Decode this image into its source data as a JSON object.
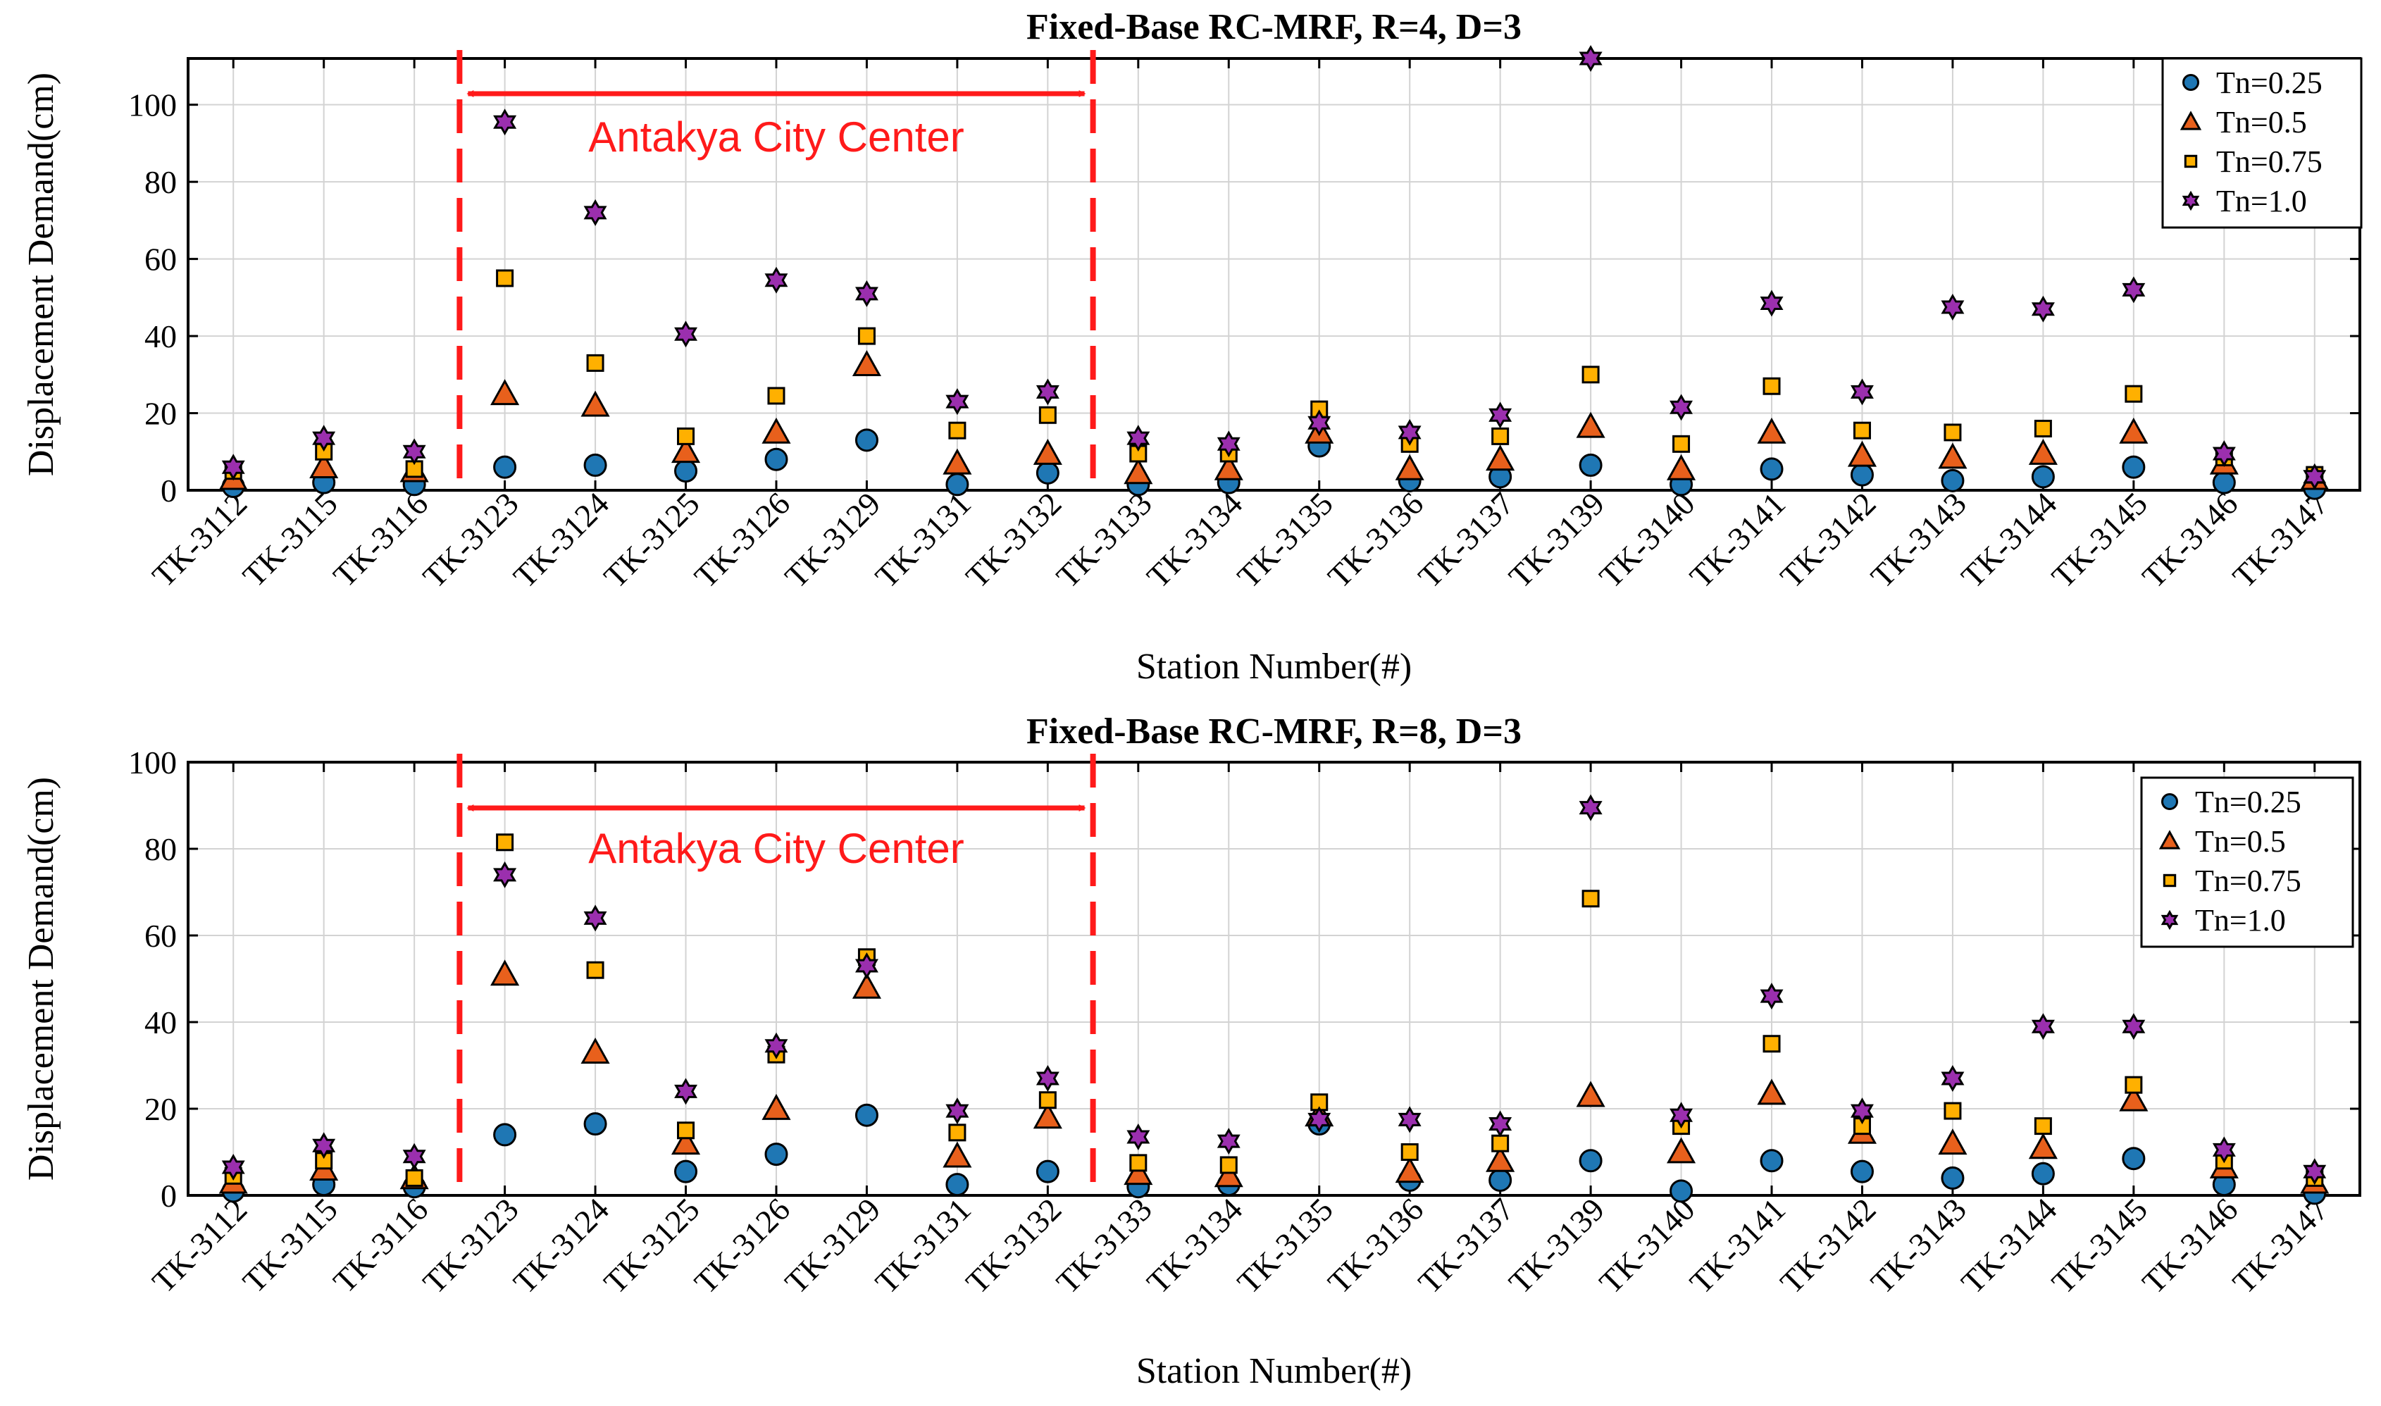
{
  "chart_data": [
    {
      "type": "scatter",
      "title": "Fixed-Base RC-MRF, R=4, D=3",
      "xlabel": "Station Number(#)",
      "ylabel": "Displacement Demand(cm)",
      "ylim": [
        0,
        112
      ],
      "yticks": [
        0,
        20,
        40,
        60,
        80,
        100
      ],
      "grid": true,
      "legend_position": "top-right",
      "categories": [
        "TK-3112",
        "TK-3115",
        "TK-3116",
        "TK-3123",
        "TK-3124",
        "TK-3125",
        "TK-3126",
        "TK-3129",
        "TK-3131",
        "TK-3132",
        "TK-3133",
        "TK-3134",
        "TK-3135",
        "TK-3136",
        "TK-3137",
        "TK-3139",
        "TK-3140",
        "TK-3141",
        "TK-3142",
        "TK-3143",
        "TK-3144",
        "TK-3145",
        "TK-3146",
        "TK-3147"
      ],
      "series": [
        {
          "name": "Tn=0.25",
          "marker": "circle",
          "color": "#1f77b4",
          "values": [
            1,
            2,
            1.5,
            6,
            6.5,
            5,
            8,
            13,
            1.5,
            4.5,
            1.5,
            2,
            11.5,
            2.5,
            3.5,
            6.5,
            1.5,
            5.5,
            4,
            2.5,
            3.5,
            6,
            2,
            0.5
          ]
        },
        {
          "name": "Tn=0.5",
          "marker": "triangle",
          "color": "#e8601c",
          "values": [
            3,
            6,
            5,
            25,
            22,
            10,
            15,
            32.5,
            7,
            9.5,
            4.5,
            5.5,
            15,
            5.5,
            8,
            16.5,
            5.5,
            15,
            9,
            8.5,
            9.5,
            15,
            7,
            3
          ]
        },
        {
          "name": "Tn=0.75",
          "marker": "square",
          "color": "#ffb000",
          "values": [
            5,
            10,
            5.5,
            55,
            33,
            14,
            24.5,
            40,
            15.5,
            19.5,
            9.5,
            9.5,
            21,
            12,
            14,
            30,
            12,
            27,
            15.5,
            15,
            16,
            25,
            8.5,
            4
          ]
        },
        {
          "name": "Tn=1.0",
          "marker": "hexagram",
          "color": "#9b2fae",
          "values": [
            6,
            13.5,
            10,
            95.5,
            72,
            40.5,
            54.5,
            51,
            23,
            25.5,
            13.5,
            12,
            17.5,
            15,
            19.5,
            112,
            21.5,
            48.5,
            25.5,
            47.5,
            47,
            52,
            9.5,
            3.5
          ]
        }
      ],
      "annotation": {
        "text": "Antakya City Center",
        "from": "TK-3116",
        "to": "TK-3132"
      }
    },
    {
      "type": "scatter",
      "title": "Fixed-Base RC-MRF, R=8, D=3",
      "xlabel": "Station Number(#)",
      "ylabel": "Displacement Demand(cm)",
      "ylim": [
        0,
        100
      ],
      "yticks": [
        0,
        20,
        40,
        60,
        80,
        100
      ],
      "grid": true,
      "legend_position": "top-right",
      "categories": [
        "TK-3112",
        "TK-3115",
        "TK-3116",
        "TK-3123",
        "TK-3124",
        "TK-3125",
        "TK-3126",
        "TK-3129",
        "TK-3131",
        "TK-3132",
        "TK-3133",
        "TK-3134",
        "TK-3135",
        "TK-3136",
        "TK-3137",
        "TK-3139",
        "TK-3140",
        "TK-3141",
        "TK-3142",
        "TK-3143",
        "TK-3144",
        "TK-3145",
        "TK-3146",
        "TK-3147"
      ],
      "series": [
        {
          "name": "Tn=0.25",
          "marker": "circle",
          "color": "#1f77b4",
          "values": [
            1,
            2.5,
            2,
            14,
            16.5,
            5.5,
            9.5,
            18.5,
            2.5,
            5.5,
            2,
            2.5,
            16.5,
            3.5,
            3.5,
            8,
            1,
            8,
            5.5,
            4,
            5,
            8.5,
            2.5,
            0.5
          ]
        },
        {
          "name": "Tn=0.5",
          "marker": "triangle",
          "color": "#e8601c",
          "values": [
            3,
            6,
            4,
            51,
            33,
            12,
            20,
            48,
            9,
            18,
            5,
            4.5,
            18.5,
            5.5,
            8,
            23,
            10,
            23.5,
            14.5,
            12,
            11,
            22,
            6.5,
            3
          ]
        },
        {
          "name": "Tn=0.75",
          "marker": "square",
          "color": "#ffb000",
          "values": [
            4.5,
            8,
            4,
            81.5,
            52,
            15,
            32.5,
            55,
            14.5,
            22,
            7.5,
            7,
            21.5,
            10,
            12,
            68.5,
            16,
            35,
            16,
            19.5,
            16,
            25.5,
            8,
            4
          ]
        },
        {
          "name": "Tn=1.0",
          "marker": "hexagram",
          "color": "#9b2fae",
          "values": [
            6.5,
            11.5,
            9,
            74,
            64,
            24,
            34.5,
            53,
            19.5,
            27,
            13.5,
            12.5,
            17.5,
            17.5,
            16.5,
            89.5,
            18.5,
            46,
            19.5,
            27,
            39,
            39,
            10.5,
            5.5
          ]
        }
      ],
      "annotation": {
        "text": "Antakya City Center",
        "from": "TK-3116",
        "to": "TK-3132"
      }
    }
  ]
}
